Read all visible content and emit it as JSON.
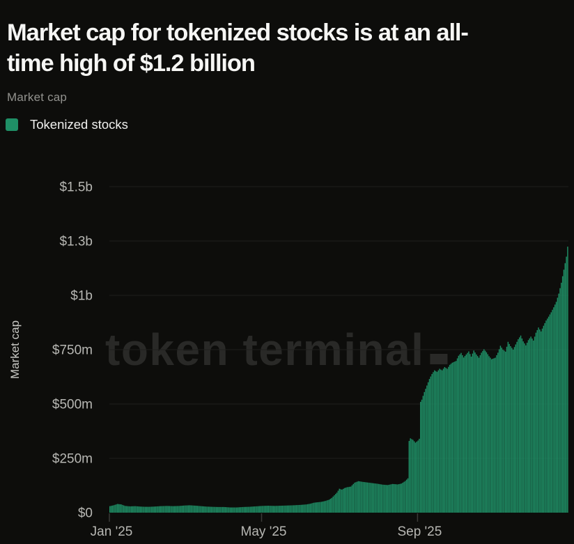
{
  "header": {
    "title_lines": [
      "Market cap for tokenized stocks is at an all-",
      "time high of $1.2 billion"
    ],
    "subtitle": "Market cap"
  },
  "legend": {
    "items": [
      {
        "label": "Tokenized stocks",
        "color": "#1f8f66"
      }
    ]
  },
  "watermark": {
    "text": "token terminal"
  },
  "colors": {
    "background": "#0d0d0b",
    "title_text": "#f6f6f4",
    "muted_text": "#92928e",
    "axis_text": "#b7b7b3",
    "gridline": "#1e1e1c",
    "watermark": "#292927",
    "series_green": "#1f8f66"
  },
  "chart_data": {
    "type": "bar",
    "title": "Market cap for tokenized stocks is at an all-time high of $1.2 billion",
    "xlabel": "",
    "ylabel": "Market cap",
    "unit": "USD millions",
    "grid": "horizontal",
    "legend_position": "top-left",
    "ylim": [
      0,
      1500
    ],
    "x_domain_days": [
      0,
      362
    ],
    "x_axis_start": "Jan 1 2025",
    "y_ticks": [
      {
        "label": "$0",
        "value": 0
      },
      {
        "label": "$250m",
        "value": 250
      },
      {
        "label": "$500m",
        "value": 500
      },
      {
        "label": "$750m",
        "value": 750
      },
      {
        "label": "$1b",
        "value": 1000
      },
      {
        "label": "$1.3b",
        "value": 1250
      },
      {
        "label": "$1.5b",
        "value": 1500
      }
    ],
    "x_ticks": [
      {
        "label": "Jan '25",
        "day": 0
      },
      {
        "label": "May '25",
        "day": 120
      },
      {
        "label": "Sep '25",
        "day": 243
      }
    ],
    "series": [
      {
        "name": "Tokenized stocks",
        "color": "#1f8f66",
        "interpolation": "linear-daily",
        "anchors_day_value_musd": [
          [
            0,
            30
          ],
          [
            3,
            34
          ],
          [
            6,
            40
          ],
          [
            9,
            38
          ],
          [
            12,
            31
          ],
          [
            16,
            29
          ],
          [
            20,
            30
          ],
          [
            24,
            28
          ],
          [
            28,
            27
          ],
          [
            31,
            27
          ],
          [
            35,
            28
          ],
          [
            40,
            30
          ],
          [
            45,
            31
          ],
          [
            50,
            30
          ],
          [
            55,
            31
          ],
          [
            59,
            33
          ],
          [
            63,
            34
          ],
          [
            68,
            32
          ],
          [
            72,
            30
          ],
          [
            76,
            28
          ],
          [
            80,
            27
          ],
          [
            85,
            26
          ],
          [
            90,
            26
          ],
          [
            95,
            24
          ],
          [
            100,
            24
          ],
          [
            105,
            26
          ],
          [
            110,
            27
          ],
          [
            115,
            29
          ],
          [
            120,
            31
          ],
          [
            125,
            32
          ],
          [
            130,
            31
          ],
          [
            135,
            32
          ],
          [
            140,
            33
          ],
          [
            145,
            34
          ],
          [
            151,
            36
          ],
          [
            155,
            38
          ],
          [
            158,
            41
          ],
          [
            161,
            46
          ],
          [
            164,
            48
          ],
          [
            167,
            50
          ],
          [
            170,
            54
          ],
          [
            173,
            60
          ],
          [
            175,
            68
          ],
          [
            177,
            80
          ],
          [
            179,
            92
          ],
          [
            181,
            110
          ],
          [
            183,
            106
          ],
          [
            185,
            113
          ],
          [
            187,
            117
          ],
          [
            190,
            120
          ],
          [
            193,
            138
          ],
          [
            196,
            145
          ],
          [
            199,
            142
          ],
          [
            203,
            139
          ],
          [
            207,
            136
          ],
          [
            211,
            133
          ],
          [
            215,
            129
          ],
          [
            219,
            127
          ],
          [
            223,
            132
          ],
          [
            227,
            130
          ],
          [
            230,
            134
          ],
          [
            233,
            146
          ],
          [
            235,
            158
          ],
          [
            236,
            330
          ],
          [
            237,
            342
          ],
          [
            239,
            335
          ],
          [
            241,
            322
          ],
          [
            243,
            332
          ],
          [
            244,
            340
          ],
          [
            245,
            510
          ],
          [
            246,
            520
          ],
          [
            248,
            555
          ],
          [
            250,
            585
          ],
          [
            252,
            615
          ],
          [
            254,
            638
          ],
          [
            256,
            655
          ],
          [
            258,
            648
          ],
          [
            260,
            662
          ],
          [
            262,
            655
          ],
          [
            264,
            670
          ],
          [
            266,
            662
          ],
          [
            268,
            680
          ],
          [
            270,
            690
          ],
          [
            273,
            698
          ],
          [
            275,
            722
          ],
          [
            277,
            735
          ],
          [
            279,
            714
          ],
          [
            281,
            728
          ],
          [
            283,
            742
          ],
          [
            285,
            718
          ],
          [
            287,
            746
          ],
          [
            289,
            728
          ],
          [
            291,
            713
          ],
          [
            293,
            736
          ],
          [
            295,
            752
          ],
          [
            297,
            738
          ],
          [
            299,
            720
          ],
          [
            301,
            706
          ],
          [
            304,
            713
          ],
          [
            306,
            736
          ],
          [
            308,
            768
          ],
          [
            310,
            750
          ],
          [
            312,
            741
          ],
          [
            314,
            786
          ],
          [
            316,
            766
          ],
          [
            318,
            750
          ],
          [
            320,
            774
          ],
          [
            322,
            798
          ],
          [
            324,
            815
          ],
          [
            326,
            788
          ],
          [
            328,
            770
          ],
          [
            330,
            794
          ],
          [
            332,
            810
          ],
          [
            334,
            792
          ],
          [
            336,
            828
          ],
          [
            338,
            852
          ],
          [
            340,
            834
          ],
          [
            342,
            860
          ],
          [
            344,
            884
          ],
          [
            346,
            902
          ],
          [
            348,
            922
          ],
          [
            350,
            945
          ],
          [
            352,
            970
          ],
          [
            354,
            1008
          ],
          [
            356,
            1058
          ],
          [
            358,
            1118
          ],
          [
            360,
            1178
          ],
          [
            361,
            1224
          ]
        ]
      }
    ]
  }
}
